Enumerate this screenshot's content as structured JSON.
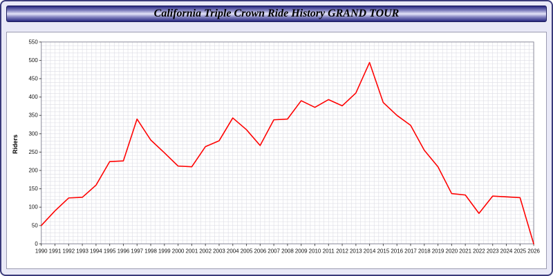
{
  "page": {
    "title": "California Triple Crown Ride History GRAND TOUR"
  },
  "colors": {
    "line": "#ff0000",
    "page_background": "#e9e9f7",
    "plot_background": "#ffffff",
    "grid": "#dcdce4",
    "title_bar_dark": "#26267e",
    "title_bar_light": "#e4e4f8"
  },
  "chart_data": {
    "type": "line",
    "title": "California Triple Crown Ride History GRAND TOUR",
    "xlabel": "",
    "ylabel": "Riders",
    "ylim": [
      0,
      550
    ],
    "yticks": [
      0,
      50,
      100,
      150,
      200,
      250,
      300,
      350,
      400,
      450,
      500,
      550
    ],
    "grid": true,
    "legend": "none",
    "series_color": "#ff0000",
    "categories": [
      "1990",
      "1991",
      "1992",
      "1993",
      "1994",
      "1995",
      "1996",
      "1997",
      "1998",
      "1999",
      "2000",
      "2001",
      "2002",
      "2003",
      "2004",
      "2005",
      "2006",
      "2007",
      "2008",
      "2009",
      "2010",
      "2011",
      "2012",
      "2013",
      "2014",
      "2015",
      "2016",
      "2017",
      "2018",
      "2019",
      "2020",
      "2021",
      "2022",
      "2023",
      "2024",
      "2025",
      "2026"
    ],
    "values": [
      50,
      90,
      125,
      127,
      160,
      224,
      226,
      340,
      283,
      248,
      212,
      210,
      265,
      281,
      343,
      311,
      268,
      338,
      340,
      390,
      372,
      393,
      376,
      411,
      494,
      385,
      350,
      323,
      255,
      210,
      137,
      133,
      83,
      130,
      128,
      126,
      0
    ]
  }
}
